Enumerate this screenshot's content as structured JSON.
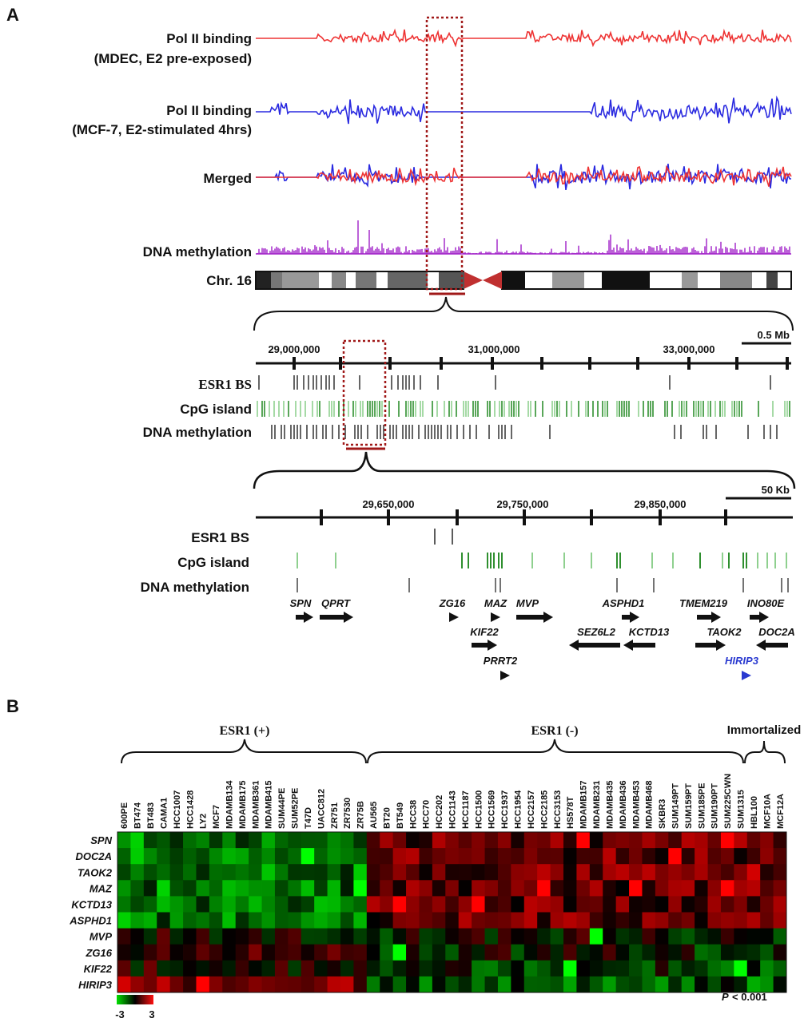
{
  "panel_a": {
    "label": "A",
    "tracks": {
      "pol2_mdec_line1": "Pol II binding",
      "pol2_mdec_line2": "(MDEC, E2 pre-exposed)",
      "pol2_mcf7_line1": "Pol II binding",
      "pol2_mcf7_line2": "(MCF-7, E2-stimulated 4hrs)",
      "merged": "Merged",
      "dna_methylation": "DNA methylation",
      "chromosome": "Chr. 16"
    },
    "colors": {
      "mdec": "#ee3333",
      "mcf7": "#2a2ae0",
      "methylation": "#a020c8",
      "cpg": "#3a9a3a",
      "highlight": "#b01818",
      "hirip3": "#2a3ad0"
    },
    "zoom1": {
      "scale_label": "0.5 Mb",
      "coords": [
        "29,000,000",
        "31,000,000",
        "33,000,000"
      ],
      "tracks": [
        "ESR1 BS",
        "CpG island",
        "DNA methylation"
      ]
    },
    "zoom2": {
      "scale_label": "50 Kb",
      "coords": [
        "29,650,000",
        "29,750,000",
        "29,850,000"
      ],
      "tracks": [
        "ESR1 BS",
        "CpG island",
        "DNA methylation"
      ]
    },
    "genes": [
      "SPN",
      "QPRT",
      "ZG16",
      "MAZ",
      "MVP",
      "ASPHD1",
      "TMEM219",
      "INO80E",
      "KIF22",
      "SEZ6L2",
      "KCTD13",
      "TAOK2",
      "DOC2A",
      "PRRT2",
      "HIRIP3"
    ]
  },
  "panel_b": {
    "label": "B",
    "groups": [
      "ESR1 (+)",
      "ESR1 (-)",
      "Immortalized"
    ],
    "pvalue": "< 0.001",
    "pvalue_symbol": "P",
    "scale_min": "-3",
    "scale_max": "3",
    "columns": [
      "600PE",
      "BT474",
      "BT483",
      "CAMA1",
      "HCC1007",
      "HCC1428",
      "LY2",
      "MCF7",
      "MDAMB134",
      "MDAMB175",
      "MDAMB361",
      "MDAMB415",
      "SUM44PE",
      "SUM52PE",
      "T47D",
      "UACC812",
      "ZR751",
      "ZR7530",
      "ZR75B",
      "AU565",
      "BT20",
      "BT549",
      "HCC38",
      "HCC70",
      "HCC202",
      "HCC1143",
      "HCC1187",
      "HCC1500",
      "HCC1569",
      "HCC1937",
      "HCC1954",
      "HCC2157",
      "HCC2185",
      "HCC3153",
      "HS578T",
      "MDAMB157",
      "MDAMB231",
      "MDAMB435",
      "MDAMB436",
      "MDAMB453",
      "MDAMB468",
      "SKBR3",
      "SUM149PT",
      "SUM159PT",
      "SUM185PE",
      "SUM190PT",
      "SUM225CWN",
      "SUM1315",
      "HBL100",
      "MCF10A",
      "MCF12A"
    ],
    "rows": [
      "SPN",
      "DOC2A",
      "TAOK2",
      "MAZ",
      "KCTD13",
      "ASPHD1",
      "MVP",
      "ZG16",
      "KIF22",
      "HIRIP3"
    ]
  }
}
